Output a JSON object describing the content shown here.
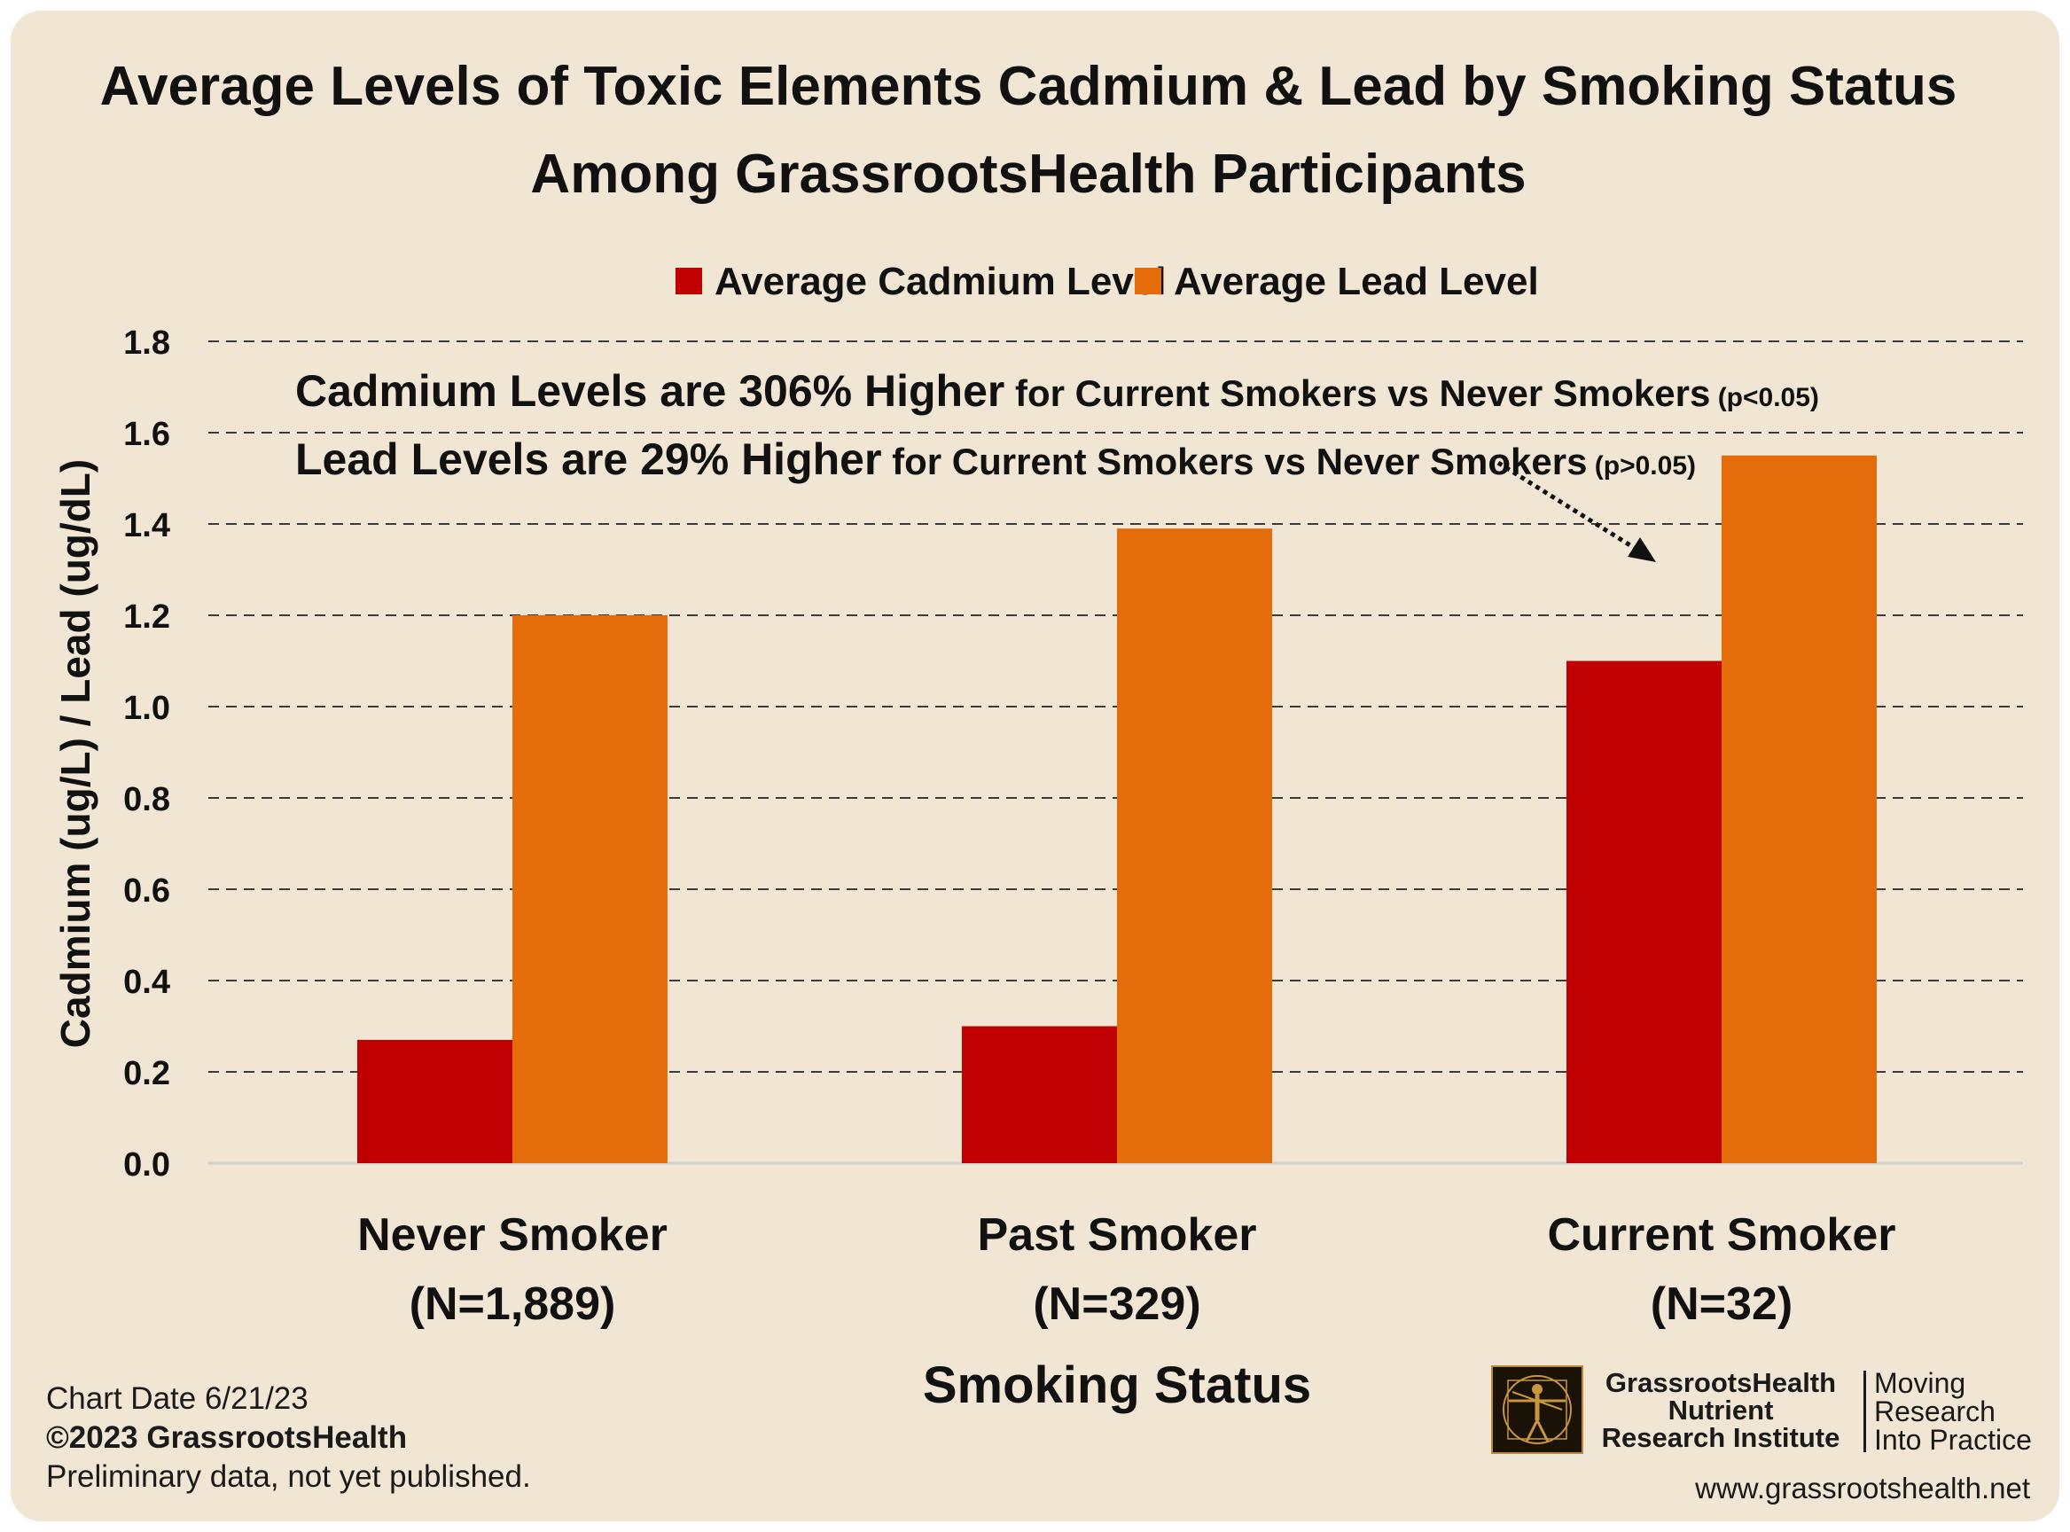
{
  "chart_data": {
    "type": "bar",
    "title": [
      "Average Levels of Toxic Elements Cadmium & Lead by Smoking Status",
      "Among GrassrootsHealth Participants"
    ],
    "categories": [
      [
        "Never Smoker",
        "(N=1,889)"
      ],
      [
        "Past Smoker",
        "(N=329)"
      ],
      [
        "Current Smoker",
        "(N=32)"
      ]
    ],
    "series": [
      {
        "name": "Average Cadmium Level",
        "color": "#c00000",
        "values": [
          0.27,
          0.3,
          1.1
        ]
      },
      {
        "name": "Average Lead Level",
        "color": "#e46c0a",
        "values": [
          1.2,
          1.39,
          1.55
        ]
      }
    ],
    "xlabel": "Smoking Status",
    "ylabel": "Cadmium (ug/L) / Lead (ug/dL)",
    "ylim": [
      0,
      1.8
    ],
    "yticks": [
      "0.0",
      "0.2",
      "0.4",
      "0.6",
      "0.8",
      "1.0",
      "1.2",
      "1.4",
      "1.6",
      "1.8"
    ],
    "grid": "dashed horizontal",
    "legend_position": "top-center",
    "annotations": [
      {
        "main": "Cadmium Levels are 306% Higher",
        "detail": " for Current Smokers vs Never Smokers",
        "pvalue": " (p<0.05)"
      },
      {
        "main": "Lead Levels are 29% Higher",
        "detail": " for Current Smokers vs Never Smokers",
        "pvalue": " (p>0.05)"
      }
    ],
    "arrow_target": "Current Smoker"
  },
  "footer": {
    "chart_date": "Chart Date 6/21/23",
    "copyright": "©2023 GrassrootsHealth",
    "note": "Preliminary data, not yet published."
  },
  "logo": {
    "name_lines": [
      "GrassrootsHealth",
      "Nutrient",
      "Research Institute"
    ],
    "tagline_lines": [
      "Moving",
      "Research",
      "Into Practice"
    ],
    "url": "www.grassrootshealth.net"
  }
}
